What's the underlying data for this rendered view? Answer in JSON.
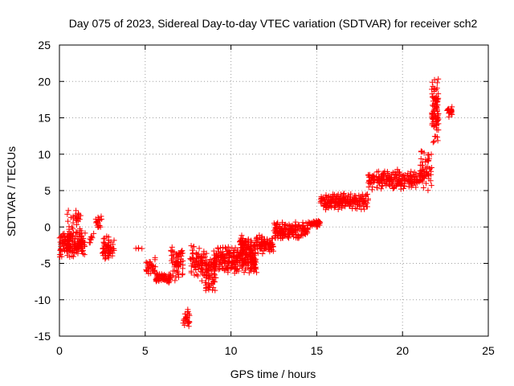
{
  "chart_data": {
    "type": "scatter",
    "title": "Day 075 of 2023, Sidereal Day-to-day VTEC variation (SDTVAR) for receiver sch2",
    "xlabel": "GPS time / hours",
    "ylabel": "SDTVAR / TECUs",
    "xlim": [
      0,
      25
    ],
    "ylim": [
      -15,
      25
    ],
    "xticks": [
      0,
      5,
      10,
      15,
      20,
      25
    ],
    "yticks": [
      -15,
      -10,
      -5,
      0,
      5,
      10,
      15,
      20,
      25
    ],
    "grid": true,
    "marker": "plus",
    "color": "#ff0000",
    "series": [
      {
        "name": "SDTVAR",
        "clusters": [
          {
            "x": [
              0.0,
              1.5
            ],
            "y_mid": -2.5,
            "y_spread": 2.0,
            "n": 140
          },
          {
            "x": [
              0.4,
              1.3
            ],
            "y_mid": -1.0,
            "y_spread": 3.5,
            "n": 50
          },
          {
            "x": [
              0.9,
              1.15
            ],
            "y_mid": 1.5,
            "y_spread": 1.5,
            "n": 10
          },
          {
            "x": [
              1.7,
              2.0
            ],
            "y_mid": -1.5,
            "y_spread": 0.8,
            "n": 8
          },
          {
            "x": [
              2.1,
              2.5
            ],
            "y_mid": 0.5,
            "y_spread": 1.2,
            "n": 18
          },
          {
            "x": [
              2.5,
              3.2
            ],
            "y_mid": -3.0,
            "y_spread": 1.8,
            "n": 60
          },
          {
            "x": [
              3.2,
              5.0
            ],
            "y_mid": -3.0,
            "y_spread": 0.3,
            "n": 4
          },
          {
            "x": [
              5.0,
              5.6
            ],
            "y_mid": -5.5,
            "y_spread": 1.5,
            "n": 30
          },
          {
            "x": [
              5.6,
              6.5
            ],
            "y_mid": -7.0,
            "y_spread": 0.8,
            "n": 60
          },
          {
            "x": [
              6.5,
              7.2
            ],
            "y_mid": -5.0,
            "y_spread": 2.5,
            "n": 60
          },
          {
            "x": [
              7.2,
              7.6
            ],
            "y_mid": -12.5,
            "y_spread": 1.5,
            "n": 25
          },
          {
            "x": [
              7.6,
              8.6
            ],
            "y_mid": -5.0,
            "y_spread": 2.5,
            "n": 80
          },
          {
            "x": [
              8.5,
              9.2
            ],
            "y_mid": -6.5,
            "y_spread": 2.5,
            "n": 70
          },
          {
            "x": [
              9.0,
              11.5
            ],
            "y_mid": -4.5,
            "y_spread": 2.0,
            "n": 260
          },
          {
            "x": [
              10.5,
              12.5
            ],
            "y_mid": -2.5,
            "y_spread": 1.5,
            "n": 150
          },
          {
            "x": [
              12.5,
              14.5
            ],
            "y_mid": -0.5,
            "y_spread": 1.2,
            "n": 160
          },
          {
            "x": [
              14.5,
              15.2
            ],
            "y_mid": 0.5,
            "y_spread": 0.6,
            "n": 40
          },
          {
            "x": [
              15.2,
              18.0
            ],
            "y_mid": 3.5,
            "y_spread": 1.2,
            "n": 200
          },
          {
            "x": [
              18.0,
              21.0
            ],
            "y_mid": 6.5,
            "y_spread": 1.5,
            "n": 200
          },
          {
            "x": [
              21.0,
              21.7
            ],
            "y_mid": 7.5,
            "y_spread": 3.0,
            "n": 60
          },
          {
            "x": [
              21.7,
              22.1
            ],
            "y_mid": 16.0,
            "y_spread": 5.0,
            "n": 90
          },
          {
            "x": [
              22.6,
              22.9
            ],
            "y_mid": 15.8,
            "y_spread": 0.8,
            "n": 20
          }
        ]
      }
    ]
  }
}
